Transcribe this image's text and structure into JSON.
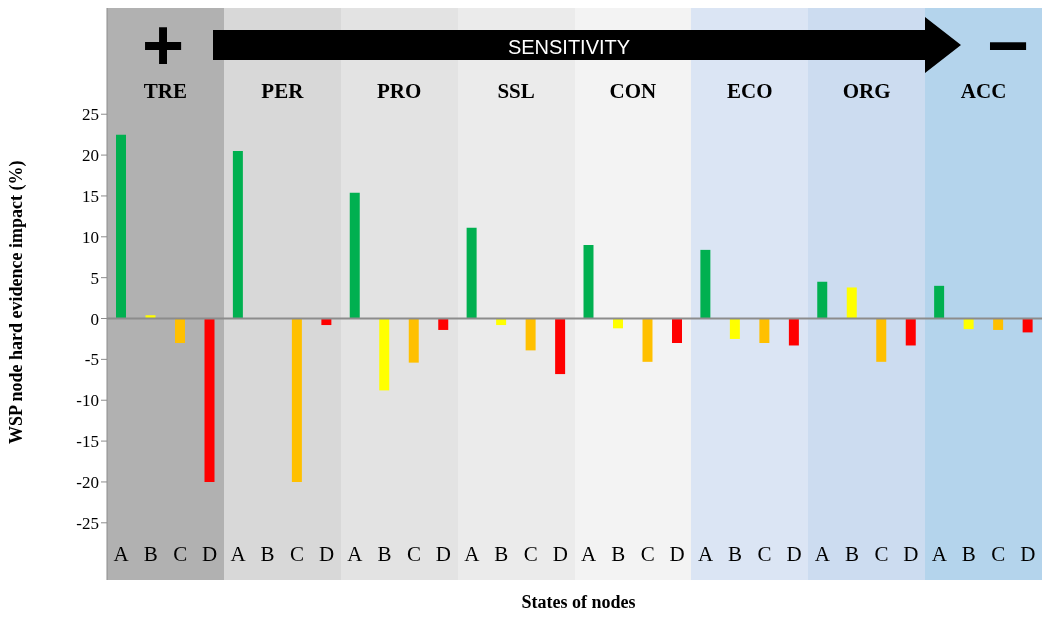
{
  "chart_data": {
    "type": "bar",
    "xlabel": "States of nodes",
    "ylabel": "WSP node hard evidence impact  (%)",
    "categories": [
      "TRE",
      "PER",
      "PRO",
      "SSL",
      "CON",
      "ECO",
      "ORG",
      "ACC"
    ],
    "series": [
      {
        "name": "A",
        "color": "#00b050",
        "values": [
          22.5,
          20.5,
          15.4,
          11.1,
          9.0,
          8.4,
          4.5,
          4.0
        ]
      },
      {
        "name": "B",
        "color": "#ffff00",
        "values": [
          0.4,
          0,
          -8.8,
          -0.8,
          -1.2,
          -2.5,
          3.8,
          -1.3
        ]
      },
      {
        "name": "C",
        "color": "#ffc000",
        "values": [
          -3.0,
          -20.0,
          -5.4,
          -3.9,
          -5.3,
          -3.0,
          -5.3,
          -1.4
        ]
      },
      {
        "name": "D",
        "color": "#ff0000",
        "values": [
          -20.0,
          -0.8,
          -1.4,
          -6.8,
          -3.0,
          -3.3,
          -3.3,
          -1.7
        ]
      }
    ],
    "ylim": [
      -32,
      38
    ],
    "yticks": [
      -25,
      -20,
      -15,
      -10,
      -5,
      0,
      5,
      10,
      15,
      20,
      25
    ],
    "ref_lines": [
      {
        "axis": "y",
        "value": 0,
        "color": "#8c8c8c"
      }
    ],
    "bands": [
      {
        "axis": "x",
        "from": "TRE",
        "to": "TRE",
        "color": "#b1b1b1"
      },
      {
        "axis": "x",
        "from": "PER",
        "to": "PER",
        "color": "#d8d8d8"
      },
      {
        "axis": "x",
        "from": "PRO",
        "to": "PRO",
        "color": "#e3e3e3"
      },
      {
        "axis": "x",
        "from": "SSL",
        "to": "SSL",
        "color": "#ebebeb"
      },
      {
        "axis": "x",
        "from": "CON",
        "to": "CON",
        "color": "#f3f3f3"
      },
      {
        "axis": "x",
        "from": "ECO",
        "to": "ECO",
        "color": "#dbe5f4"
      },
      {
        "axis": "x",
        "from": "ORG",
        "to": "ORG",
        "color": "#ccdcf0"
      },
      {
        "axis": "x",
        "from": "ACC",
        "to": "ACC",
        "color": "#b4d4ec"
      }
    ],
    "annotations": [
      "SENSITIVITY",
      "+",
      "−"
    ]
  }
}
